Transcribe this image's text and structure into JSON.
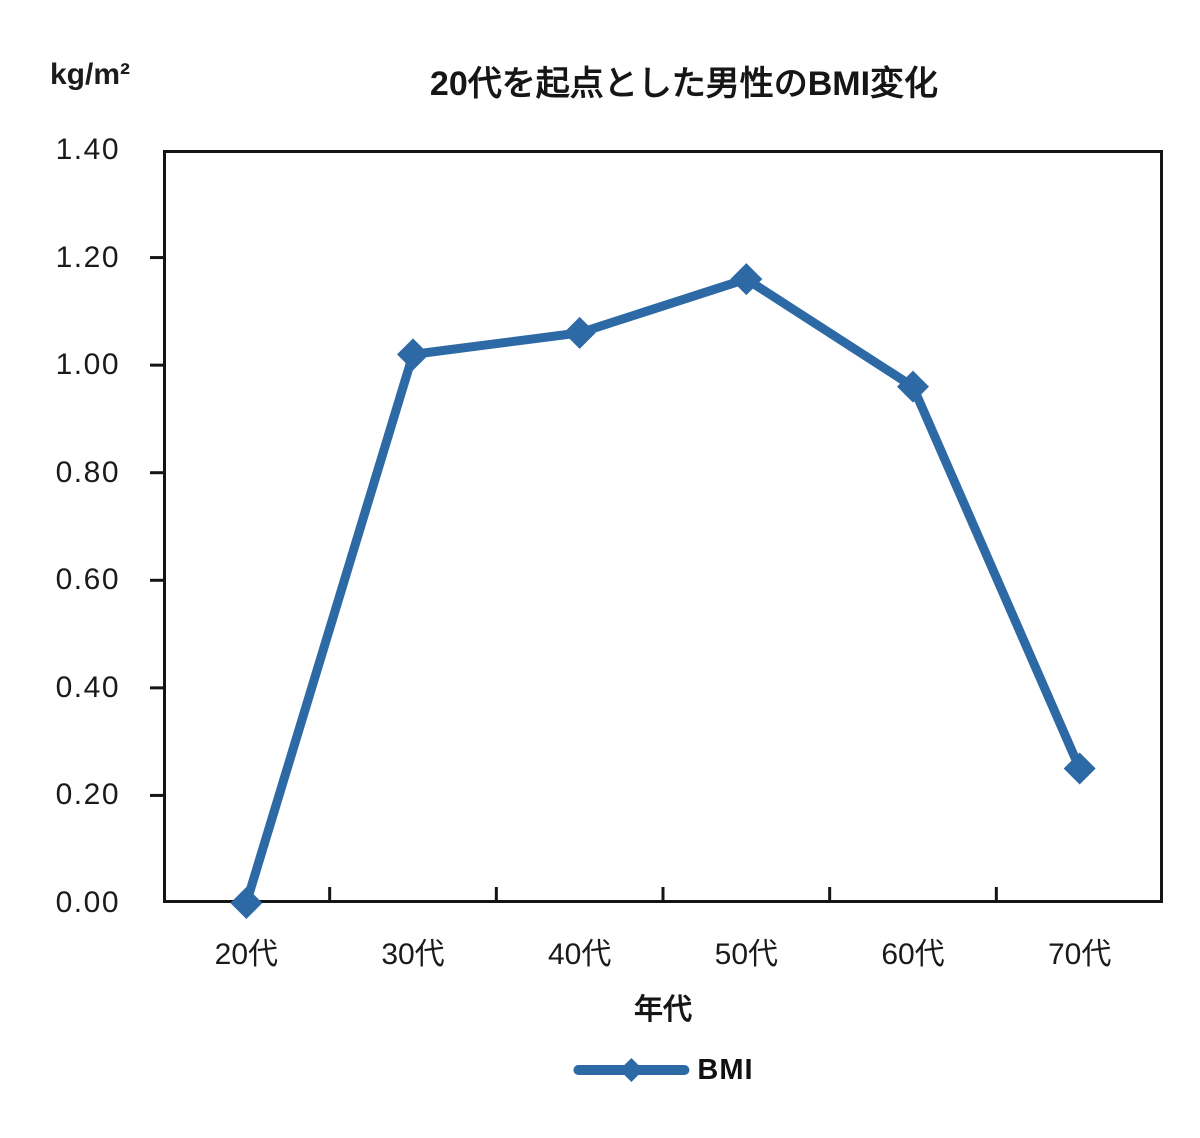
{
  "header": {
    "unit_label": "kg/m²",
    "title": "20代を起点とした男性のBMI変化"
  },
  "chart_data": {
    "type": "line",
    "title": "20代を起点とした男性のBMI変化",
    "categories": [
      "20代",
      "30代",
      "40代",
      "50代",
      "60代",
      "70代"
    ],
    "series": [
      {
        "name": "BMI",
        "values": [
          0.0,
          1.02,
          1.06,
          1.16,
          0.96,
          0.25
        ],
        "color": "#2d6aa5",
        "marker": "diamond",
        "line_width": 9
      }
    ],
    "xlabel": "年代",
    "ylabel": "kg/m²",
    "ylim": [
      0,
      1.4
    ],
    "ytick_labels": [
      "0.00",
      "0.20",
      "0.40",
      "0.60",
      "0.80",
      "1.00",
      "1.20",
      "1.40"
    ],
    "grid": false,
    "plot_border": true,
    "axis_color": "#141414",
    "legend_position": "bottom"
  },
  "legend": {
    "label": "BMI"
  }
}
